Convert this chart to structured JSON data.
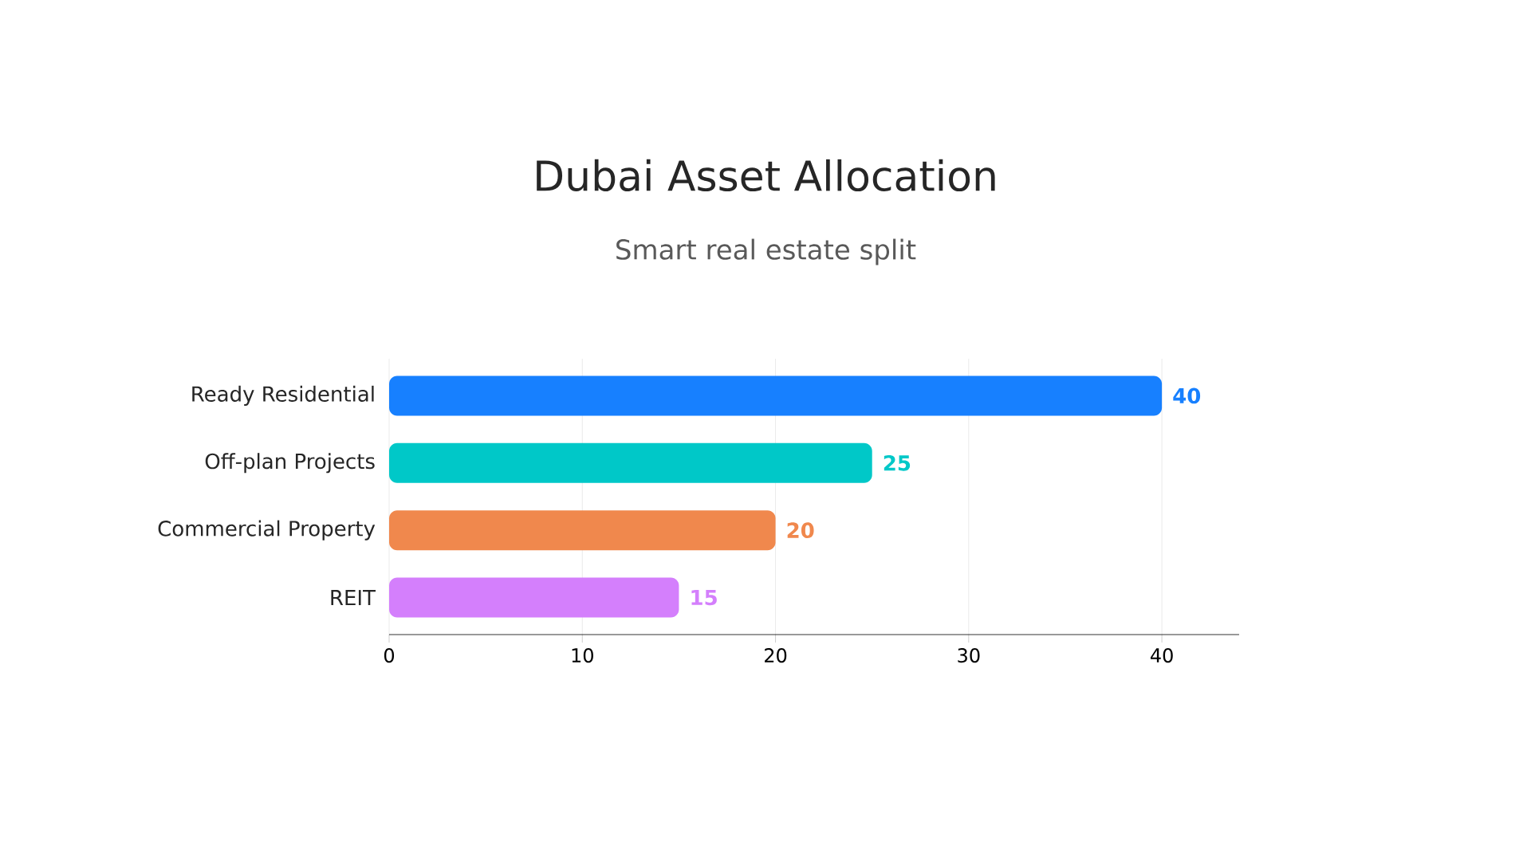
{
  "chart_data": {
    "type": "bar",
    "orientation": "horizontal",
    "title": "Dubai Asset Allocation",
    "subtitle": "Smart real estate split",
    "categories": [
      "Ready Residential",
      "Off-plan Projects",
      "Commercial Property",
      "REIT"
    ],
    "values": [
      40,
      25,
      20,
      15
    ],
    "colors": [
      "#1780ff",
      "#00c8c8",
      "#f0884d",
      "#d47ffc"
    ],
    "xlim": [
      0,
      44
    ],
    "xticks": [
      0,
      10,
      20,
      30,
      40
    ],
    "grid": "x",
    "data_labels": true
  }
}
